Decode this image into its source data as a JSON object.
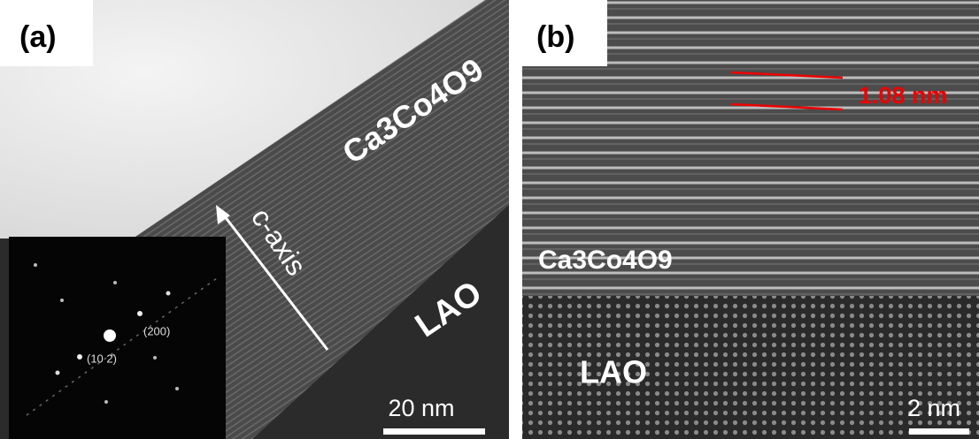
{
  "panels": [
    {
      "label": "(a)",
      "film": "Ca3Co4O9",
      "axis": "c-axis",
      "substrate": "LAO",
      "scale_bar": "20 nm",
      "inset": {
        "spots": [
          "(200)",
          "(10 2̄)"
        ]
      }
    },
    {
      "label": "(b)",
      "film": "Ca3Co4O9",
      "substrate": "LAO",
      "spacing": "1.08 nm",
      "scale_bar": "2 nm"
    }
  ]
}
